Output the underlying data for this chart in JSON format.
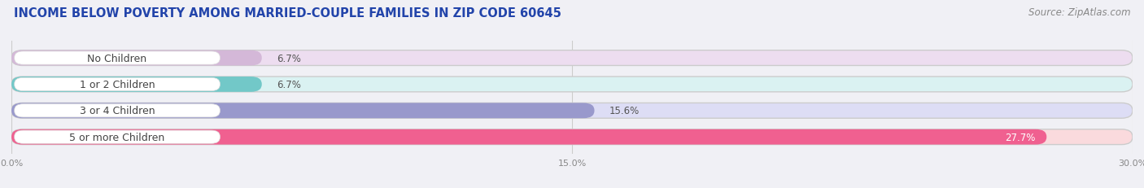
{
  "title": "INCOME BELOW POVERTY AMONG MARRIED-COUPLE FAMILIES IN ZIP CODE 60645",
  "source": "Source: ZipAtlas.com",
  "categories": [
    "No Children",
    "1 or 2 Children",
    "3 or 4 Children",
    "5 or more Children"
  ],
  "values": [
    6.7,
    6.7,
    15.6,
    27.7
  ],
  "bar_colors": [
    "#d4b8d8",
    "#72c8c8",
    "#9999cc",
    "#f06090"
  ],
  "bar_bg_colors": [
    "#edddf0",
    "#daf2f2",
    "#ddddf5",
    "#fadadd"
  ],
  "xlim": [
    0,
    30.0
  ],
  "xticks": [
    0.0,
    15.0,
    30.0
  ],
  "xticklabels": [
    "0.0%",
    "15.0%",
    "30.0%"
  ],
  "background_color": "#ffffff",
  "outer_bg_color": "#f0f0f5",
  "title_fontsize": 10.5,
  "source_fontsize": 8.5,
  "bar_label_fontsize": 8.5,
  "category_fontsize": 9,
  "bar_height": 0.58,
  "value_label_color": "#555555",
  "last_value_label_color": "#ffffff",
  "category_label_color": "#444444"
}
